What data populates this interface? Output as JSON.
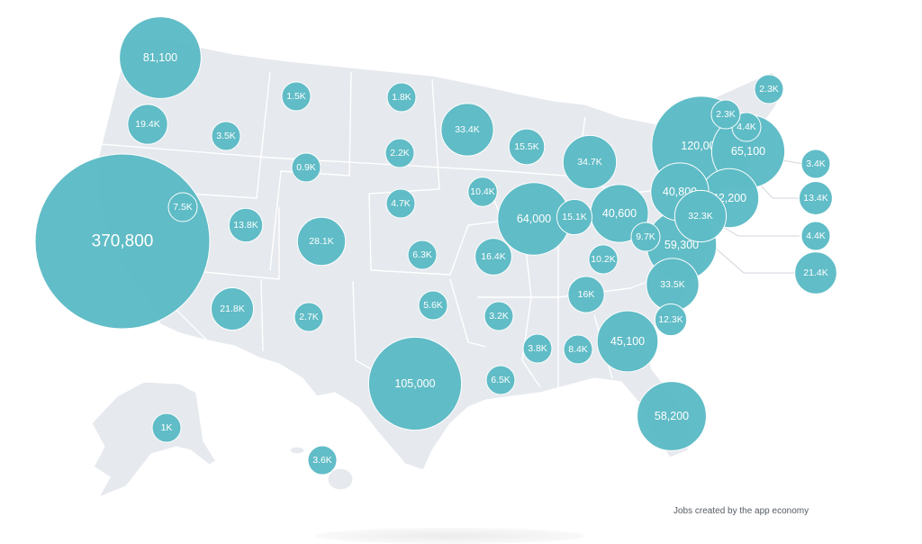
{
  "caption": "Jobs created by the app economy",
  "colors": {
    "bubble": "#5ebcc6",
    "land": "#e6e9ee",
    "borders": "#ffffff",
    "leader": "#d9dde2"
  },
  "chart_data": {
    "type": "bubble-map",
    "metric": "Jobs created by the app economy",
    "values": [
      {
        "state": "WA",
        "label": "81,100",
        "value": 81100
      },
      {
        "state": "OR",
        "label": "19.4K",
        "value": 19400
      },
      {
        "state": "ID",
        "label": "3.5K",
        "value": 3500
      },
      {
        "state": "MT",
        "label": "1.5K",
        "value": 1500
      },
      {
        "state": "ND",
        "label": "1.8K",
        "value": 1800
      },
      {
        "state": "MN",
        "label": "33.4K",
        "value": 33400
      },
      {
        "state": "WY",
        "label": "0.9K",
        "value": 900
      },
      {
        "state": "SD",
        "label": "2.2K",
        "value": 2200
      },
      {
        "state": "WI",
        "label": "15.5K",
        "value": 15500
      },
      {
        "state": "MI",
        "label": "34.7K",
        "value": 34700
      },
      {
        "state": "CA",
        "label": "370,800",
        "value": 370800
      },
      {
        "state": "NV",
        "label": "7.5K",
        "value": 7500
      },
      {
        "state": "UT",
        "label": "13.8K",
        "value": 13800
      },
      {
        "state": "CO",
        "label": "28.1K",
        "value": 28100
      },
      {
        "state": "NE",
        "label": "4.7K",
        "value": 4700
      },
      {
        "state": "IA",
        "label": "10.4K",
        "value": 10400
      },
      {
        "state": "IL",
        "label": "64,000",
        "value": 64000
      },
      {
        "state": "IN",
        "label": "15.1K",
        "value": 15100
      },
      {
        "state": "OH",
        "label": "40,600",
        "value": 40600
      },
      {
        "state": "KS",
        "label": "6.3K",
        "value": 6300
      },
      {
        "state": "MO",
        "label": "16.4K",
        "value": 16400
      },
      {
        "state": "AZ",
        "label": "21.8K",
        "value": 21800
      },
      {
        "state": "NM",
        "label": "2.7K",
        "value": 2700
      },
      {
        "state": "OK",
        "label": "5.6K",
        "value": 5600
      },
      {
        "state": "AR",
        "label": "3.2K",
        "value": 3200
      },
      {
        "state": "TX",
        "label": "105,000",
        "value": 105000
      },
      {
        "state": "LA",
        "label": "6.5K",
        "value": 6500
      },
      {
        "state": "MS",
        "label": "3.8K",
        "value": 3800
      },
      {
        "state": "AL",
        "label": "8.4K",
        "value": 8400
      },
      {
        "state": "TN",
        "label": "16K",
        "value": 16000
      },
      {
        "state": "KY",
        "label": "10.2K",
        "value": 10200
      },
      {
        "state": "GA",
        "label": "45,100",
        "value": 45100
      },
      {
        "state": "FL",
        "label": "58,200",
        "value": 58200
      },
      {
        "state": "SC",
        "label": "12.3K",
        "value": 12300
      },
      {
        "state": "NC",
        "label": "33.5K",
        "value": 33500
      },
      {
        "state": "VA",
        "label": "59,300",
        "value": 59300
      },
      {
        "state": "WV",
        "label": "9.7K",
        "value": 9700
      },
      {
        "state": "PA",
        "label": "40,800",
        "value": 40800
      },
      {
        "state": "NJ",
        "label": "42,200",
        "value": 42200
      },
      {
        "state": "MD",
        "label": "32.3K",
        "value": 32300
      },
      {
        "state": "NY",
        "label": "120,000",
        "value": 120000
      },
      {
        "state": "MA",
        "label": "65,100",
        "value": 65100
      },
      {
        "state": "VT",
        "label": "2.3K",
        "value": 2300
      },
      {
        "state": "NH",
        "label": "4.4K",
        "value": 4400
      },
      {
        "state": "ME",
        "label": "2.3K",
        "value": 2300
      },
      {
        "state": "RI",
        "label": "3.4K",
        "value": 3400
      },
      {
        "state": "CT",
        "label": "13.4K",
        "value": 13400
      },
      {
        "state": "DE",
        "label": "4.4K",
        "value": 4400
      },
      {
        "state": "DC",
        "label": "21.4K",
        "value": 21400
      },
      {
        "state": "AK",
        "label": "1K",
        "value": 1000
      },
      {
        "state": "HI",
        "label": "3.6K",
        "value": 3600
      }
    ]
  }
}
